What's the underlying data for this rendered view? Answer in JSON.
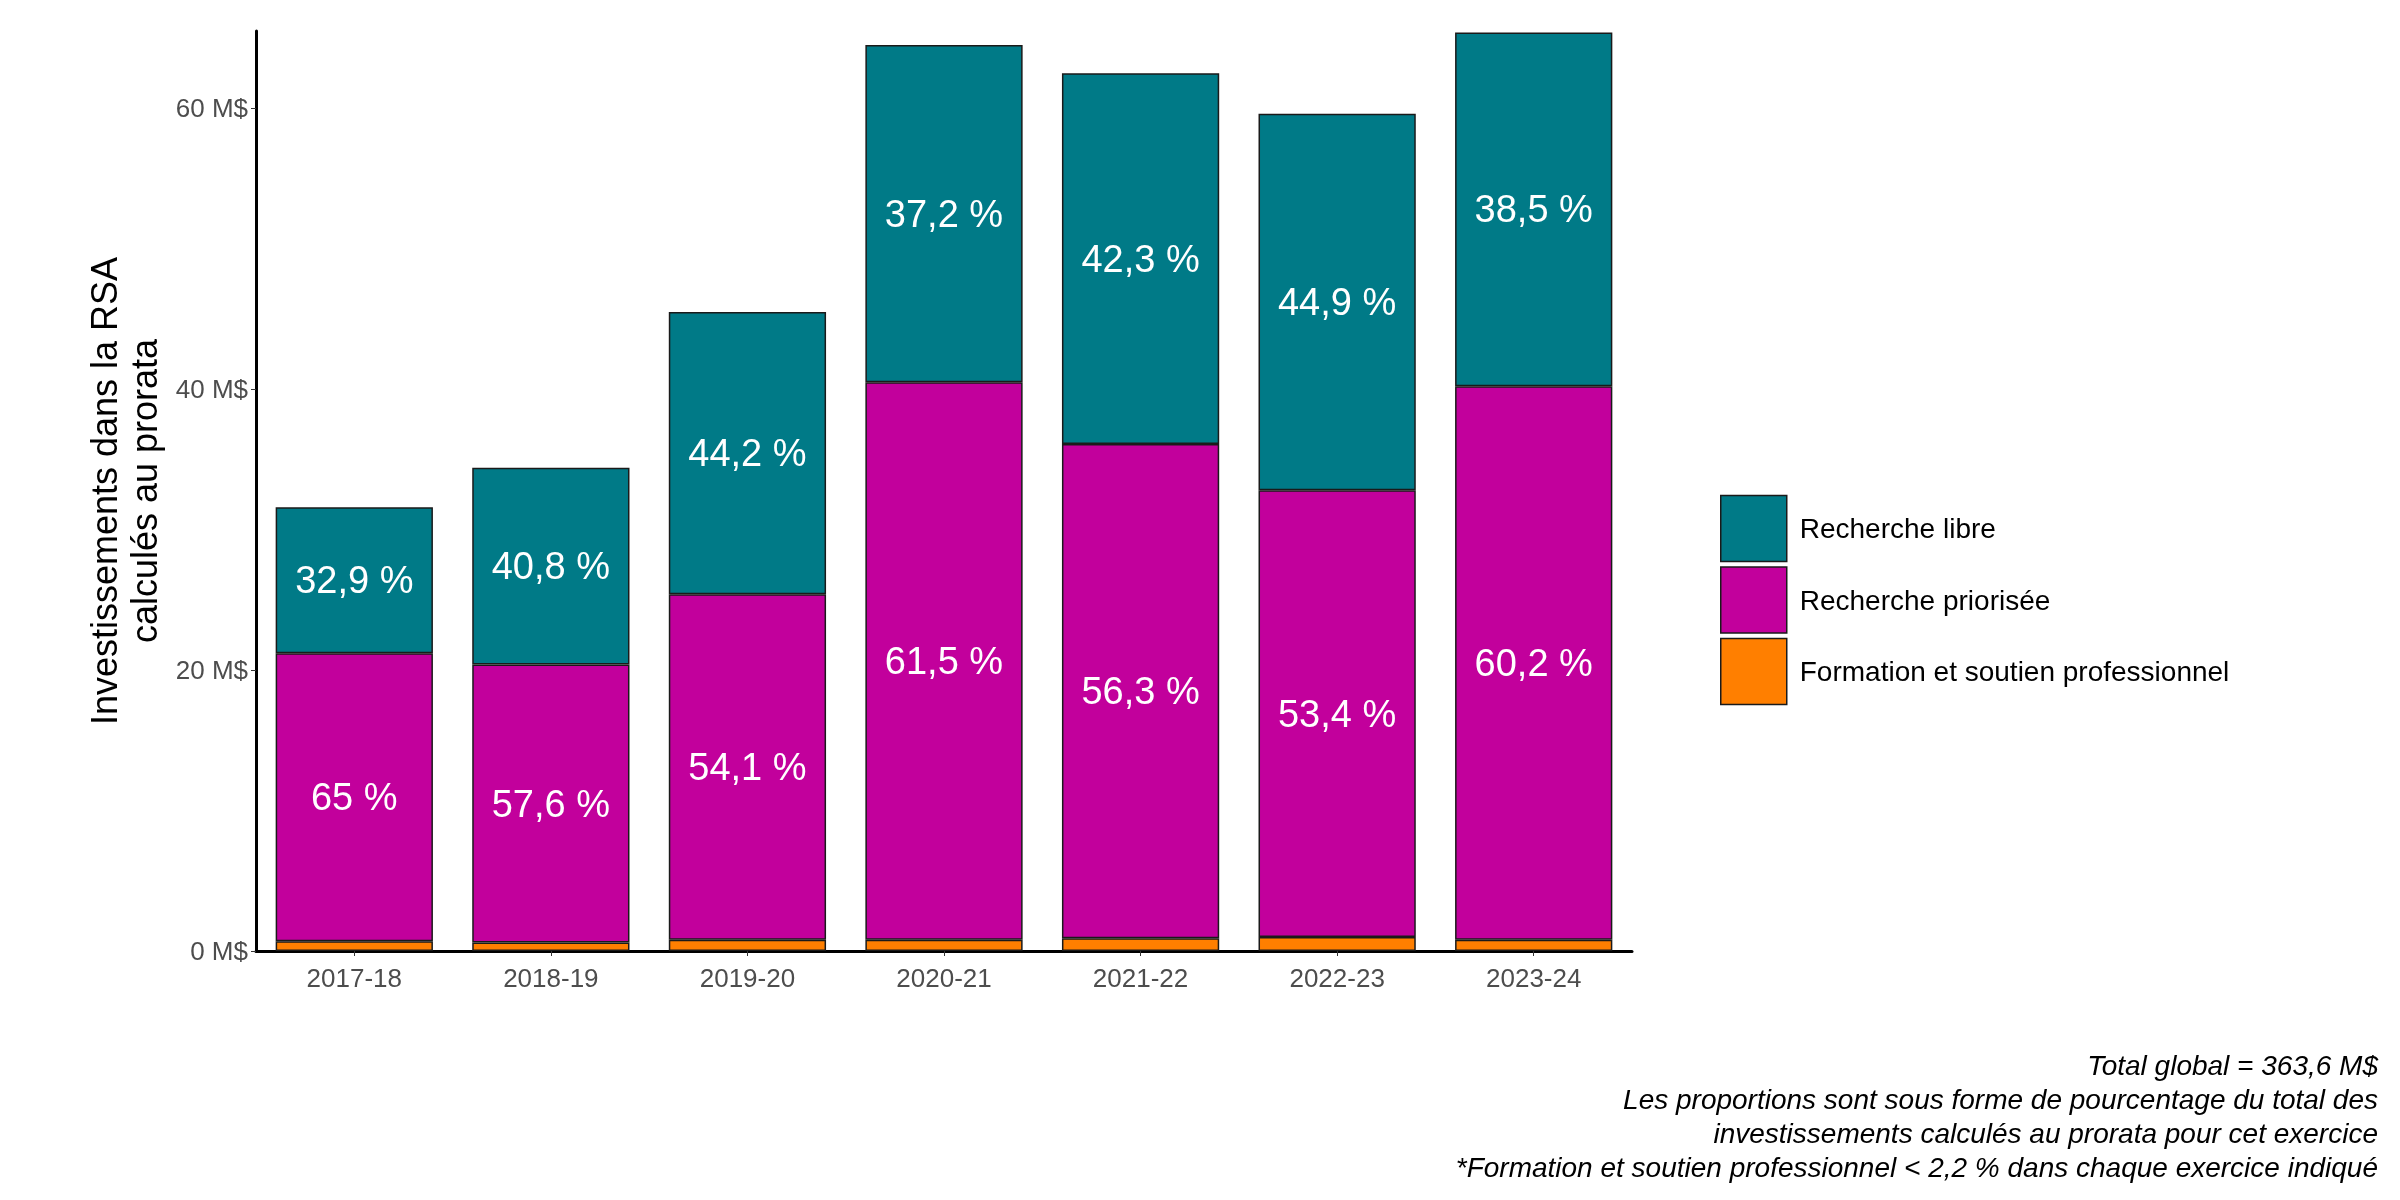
{
  "chart_data": {
    "type": "bar",
    "stacked": true,
    "ylabel": "Investissements dans la RSA\ncalculés au prorata",
    "categories": [
      "2017-18",
      "2018-19",
      "2019-20",
      "2020-21",
      "2021-22",
      "2022-23",
      "2023-24"
    ],
    "series": [
      {
        "name": "Formation et soutien professionnel",
        "color": "#ff7f00",
        "values": [
          0.7,
          0.6,
          0.8,
          0.8,
          0.9,
          1.0,
          0.8
        ]
      },
      {
        "name": "Recherche priorisée",
        "color": "#c2009c",
        "values": [
          20.5,
          19.8,
          24.6,
          39.7,
          35.2,
          31.8,
          39.4
        ]
      },
      {
        "name": "Recherche libre",
        "color": "#007a87",
        "values": [
          10.4,
          14.0,
          20.1,
          24.0,
          26.4,
          26.8,
          25.2
        ]
      }
    ],
    "ylim": [
      0,
      65.5
    ],
    "yticks": [
      {
        "value": 0,
        "label": "0 M$"
      },
      {
        "value": 20,
        "label": "20 M$"
      },
      {
        "value": 40,
        "label": "40 M$"
      },
      {
        "value": 60,
        "label": "60 M$"
      }
    ],
    "grid": false,
    "legend": "right",
    "annotations": [
      "65 %",
      "57,6 %",
      "54,1 %",
      "61,5 %",
      "56,3 %",
      "53,4 %",
      "60,2 %",
      "32,9 %",
      "40,8 %",
      "44,2 %",
      "37,2 %",
      "42,3 %",
      "44,9 %",
      "38,5 %",
      "Total global = 363,6 M$",
      "Les proportions sont sous forme de pourcentage du total des\ninvestissements calculés au prorata pour cet exercice",
      "*Formation et soutien professionnel < 2,2 % dans chaque exercice indiqué"
    ]
  }
}
